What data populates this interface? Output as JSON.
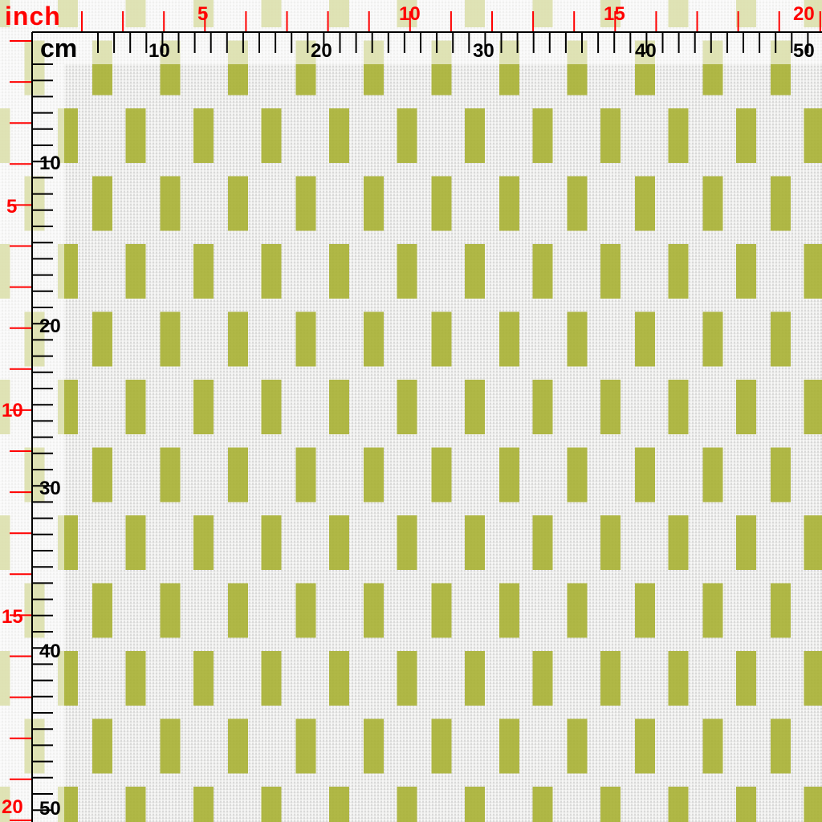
{
  "swatch": {
    "pattern": "staggered vertical rectangles",
    "colors": {
      "background": "#ebebea",
      "rectangle": "#a9b236",
      "ruler": "#000000",
      "inch_ruler": "#ff0000"
    }
  },
  "rulers": {
    "inch_unit": "inch",
    "cm_unit": "cm",
    "inch_top_labels": [
      "5",
      "10",
      "15",
      "20"
    ],
    "inch_left_labels": [
      "5",
      "10",
      "15",
      "20"
    ],
    "cm_top_labels": [
      "10",
      "20",
      "30",
      "40",
      "50"
    ],
    "cm_left_labels": [
      "10",
      "20",
      "30",
      "40",
      "50"
    ]
  }
}
